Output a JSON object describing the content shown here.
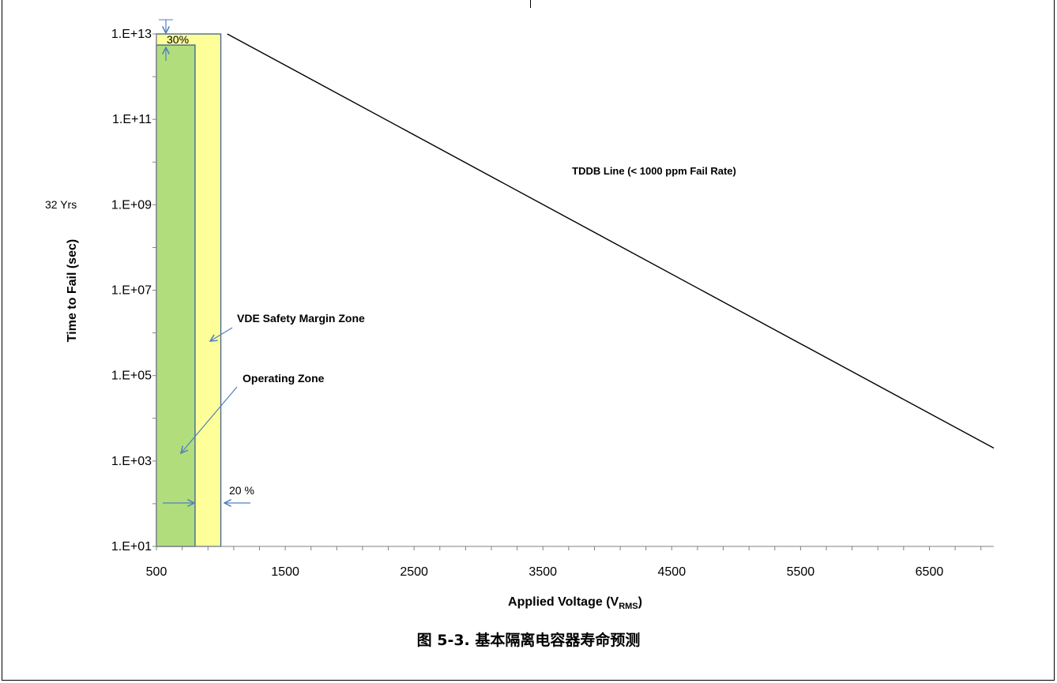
{
  "caption": "图 5-3. 基本隔离电容器寿命预测",
  "chart_data": {
    "type": "line",
    "title": "",
    "xlabel_main": "Applied Voltage (V",
    "xlabel_sub": "RMS",
    "xlabel_close": ")",
    "ylabel": "Time to Fail (sec)",
    "y_scale": "log",
    "xlim": [
      500,
      7000
    ],
    "ylim": [
      10,
      10000000000000
    ],
    "x_ticks": [
      500,
      1500,
      2500,
      3500,
      4500,
      5500,
      6500
    ],
    "x_tick_labels": [
      "500",
      "1500",
      "2500",
      "3500",
      "4500",
      "5500",
      "6500"
    ],
    "y_ticks": [
      10,
      1000,
      100000,
      10000000,
      1000000000,
      100000000000,
      10000000000000
    ],
    "y_tick_labels": [
      "1.E+01",
      "1.E+03",
      "1.E+05",
      "1.E+07",
      "1.E+09",
      "1.E+11",
      "1.E+13"
    ],
    "series": [
      {
        "name": "TDDB Line (< 1000 ppm Fail Rate)",
        "x": [
          1050,
          7000
        ],
        "y": [
          10000000000000,
          2000
        ],
        "color": "#000000"
      }
    ],
    "zones": [
      {
        "label": "VDE Safety Margin Zone",
        "x_range": [
          500,
          1000
        ],
        "y_range": [
          10,
          10000000000000
        ],
        "color": "#ffff99"
      },
      {
        "label": "Operating  Zone",
        "x_range": [
          500,
          800
        ],
        "y_range": [
          10,
          5500000000000
        ],
        "color": "#b2dd7c"
      }
    ],
    "annotations": {
      "lifetime": "32 Yrs",
      "percent_top": "30%",
      "percent_bottom": "20 %"
    },
    "colors": {
      "arrow": "#4f81bd",
      "zone_border": "#3c5f96",
      "axis": "#808080"
    }
  }
}
